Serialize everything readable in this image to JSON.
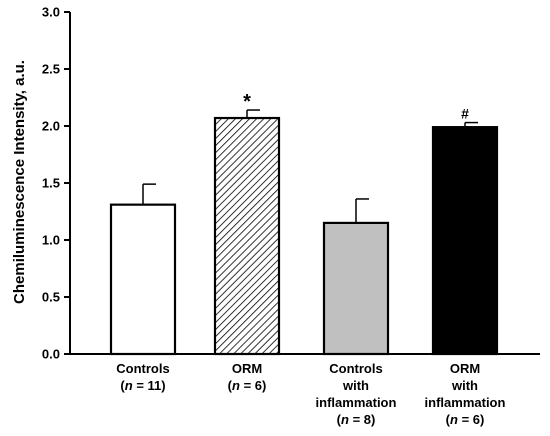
{
  "chart_data": {
    "type": "bar",
    "title": "",
    "xlabel": "",
    "ylabel": "Chemiluminescence Intensity, a.u.",
    "ylim": [
      0,
      3.0
    ],
    "yticks": [
      "0.0",
      "0.5",
      "1.0",
      "1.5",
      "2.0",
      "2.5",
      "3.0"
    ],
    "grid": false,
    "legend": "none",
    "categories": [
      {
        "lines": [
          "Controls"
        ],
        "n": "11"
      },
      {
        "lines": [
          "ORM"
        ],
        "n": "6"
      },
      {
        "lines": [
          "Controls",
          "with",
          "inflammation"
        ],
        "n": "8"
      },
      {
        "lines": [
          "ORM",
          "with",
          "inflammation"
        ],
        "n": "6"
      }
    ],
    "n_prefix": "n",
    "values": [
      1.31,
      2.07,
      1.15,
      1.99
    ],
    "errors": [
      0.18,
      0.07,
      0.21,
      0.04
    ],
    "annotations": [
      "",
      "*",
      "",
      "#"
    ],
    "fills": [
      "#ffffff",
      "hatch",
      "#c0c0c0",
      "#000000"
    ],
    "stroke_color": "#000000"
  }
}
